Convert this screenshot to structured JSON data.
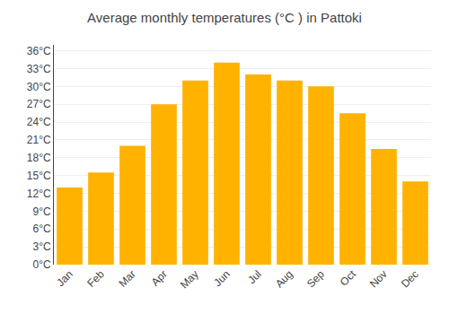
{
  "chart_data": {
    "type": "bar",
    "title": "Average monthly temperatures (°C ) in Pattoki",
    "categories": [
      "Jan",
      "Feb",
      "Mar",
      "Apr",
      "May",
      "Jun",
      "Jul",
      "Aug",
      "Sep",
      "Oct",
      "Nov",
      "Dec"
    ],
    "values": [
      13,
      15.5,
      20,
      27,
      31,
      34,
      32,
      31,
      30,
      25.5,
      19.5,
      14
    ],
    "color": "#FFB300",
    "ylim": [
      0,
      37
    ],
    "yticks": [
      {
        "value": 0,
        "label": "0°C"
      },
      {
        "value": 3,
        "label": "3°C"
      },
      {
        "value": 6,
        "label": "6°C"
      },
      {
        "value": 9,
        "label": "9°C"
      },
      {
        "value": 12,
        "label": "12°C"
      },
      {
        "value": 15,
        "label": "15°C"
      },
      {
        "value": 18,
        "label": "18°C"
      },
      {
        "value": 21,
        "label": "21°C"
      },
      {
        "value": 24,
        "label": "24°C"
      },
      {
        "value": 27,
        "label": "27°C"
      },
      {
        "value": 30,
        "label": "30°C"
      },
      {
        "value": 33,
        "label": "33°C"
      },
      {
        "value": 36,
        "label": "36°C"
      }
    ],
    "grid": true
  }
}
